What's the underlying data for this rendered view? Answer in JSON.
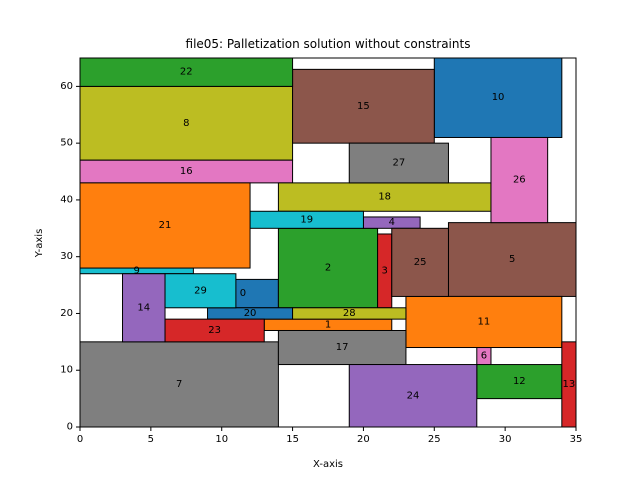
{
  "chart_data": {
    "type": "rectangles",
    "title": "file05: Palletization solution without constraints",
    "xlabel": "X-axis",
    "ylabel": "Y-axis",
    "xlim": [
      0,
      35
    ],
    "ylim": [
      0,
      65
    ],
    "xticks": [
      0,
      5,
      10,
      15,
      20,
      25,
      30,
      35
    ],
    "yticks": [
      0,
      10,
      20,
      30,
      40,
      50,
      60
    ],
    "grid": false,
    "rects": [
      {
        "id": "0",
        "x": 9,
        "y": 21,
        "w": 5,
        "h": 5,
        "color": "#1f77b4"
      },
      {
        "id": "1",
        "x": 13,
        "y": 17,
        "w": 9,
        "h": 2,
        "color": "#ff7f0e"
      },
      {
        "id": "2",
        "x": 14,
        "y": 21,
        "w": 7,
        "h": 14,
        "color": "#2ca02c"
      },
      {
        "id": "3",
        "x": 21,
        "y": 21,
        "w": 1,
        "h": 13,
        "color": "#d62728"
      },
      {
        "id": "4",
        "x": 20,
        "y": 35,
        "w": 4,
        "h": 2,
        "color": "#9467bd"
      },
      {
        "id": "5",
        "x": 26,
        "y": 23,
        "w": 9,
        "h": 13,
        "color": "#8c564b"
      },
      {
        "id": "6",
        "x": 28,
        "y": 11,
        "w": 1,
        "h": 3,
        "color": "#e377c2"
      },
      {
        "id": "7",
        "x": 0,
        "y": 0,
        "w": 14,
        "h": 15,
        "color": "#7f7f7f"
      },
      {
        "id": "8",
        "x": 0,
        "y": 47,
        "w": 15,
        "h": 13,
        "color": "#bcbd22"
      },
      {
        "id": "9",
        "x": 0,
        "y": 27,
        "w": 8,
        "h": 1,
        "color": "#17becf"
      },
      {
        "id": "10",
        "x": 25,
        "y": 51,
        "w": 9,
        "h": 14,
        "color": "#1f77b4"
      },
      {
        "id": "11",
        "x": 23,
        "y": 14,
        "w": 11,
        "h": 9,
        "color": "#ff7f0e"
      },
      {
        "id": "12",
        "x": 28,
        "y": 5,
        "w": 6,
        "h": 6,
        "color": "#2ca02c"
      },
      {
        "id": "13",
        "x": 34,
        "y": 0,
        "w": 1,
        "h": 15,
        "color": "#d62728"
      },
      {
        "id": "14",
        "x": 3,
        "y": 15,
        "w": 3,
        "h": 12,
        "color": "#9467bd"
      },
      {
        "id": "15",
        "x": 15,
        "y": 50,
        "w": 10,
        "h": 13,
        "color": "#8c564b"
      },
      {
        "id": "16",
        "x": 0,
        "y": 43,
        "w": 15,
        "h": 4,
        "color": "#e377c2"
      },
      {
        "id": "17",
        "x": 14,
        "y": 11,
        "w": 9,
        "h": 6,
        "color": "#7f7f7f"
      },
      {
        "id": "18",
        "x": 14,
        "y": 38,
        "w": 15,
        "h": 5,
        "color": "#bcbd22"
      },
      {
        "id": "19",
        "x": 12,
        "y": 35,
        "w": 8,
        "h": 3,
        "color": "#17becf"
      },
      {
        "id": "20",
        "x": 9,
        "y": 19,
        "w": 6,
        "h": 2,
        "color": "#1f77b4"
      },
      {
        "id": "21",
        "x": 0,
        "y": 28,
        "w": 12,
        "h": 15,
        "color": "#ff7f0e"
      },
      {
        "id": "22",
        "x": 0,
        "y": 60,
        "w": 15,
        "h": 5,
        "color": "#2ca02c"
      },
      {
        "id": "23",
        "x": 6,
        "y": 15,
        "w": 7,
        "h": 4,
        "color": "#d62728"
      },
      {
        "id": "24",
        "x": 19,
        "y": 0,
        "w": 9,
        "h": 11,
        "color": "#9467bd"
      },
      {
        "id": "25",
        "x": 22,
        "y": 23,
        "w": 4,
        "h": 12,
        "color": "#8c564b"
      },
      {
        "id": "26",
        "x": 29,
        "y": 36,
        "w": 4,
        "h": 15,
        "color": "#e377c2"
      },
      {
        "id": "27",
        "x": 19,
        "y": 43,
        "w": 7,
        "h": 7,
        "color": "#7f7f7f"
      },
      {
        "id": "28",
        "x": 15,
        "y": 19,
        "w": 8,
        "h": 2,
        "color": "#bcbd22"
      },
      {
        "id": "29",
        "x": 6,
        "y": 21,
        "w": 5,
        "h": 6,
        "color": "#17becf"
      }
    ]
  }
}
